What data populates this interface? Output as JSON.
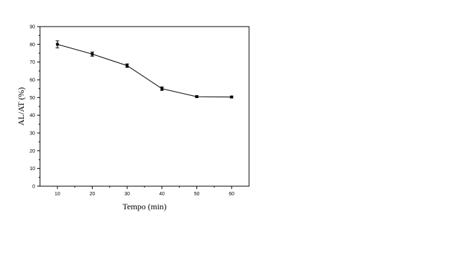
{
  "chart_data": {
    "type": "line",
    "title": "",
    "xlabel": "Tempo (min)",
    "ylabel": "AL/AT (%)",
    "xlim": [
      5,
      65
    ],
    "ylim": [
      0,
      90
    ],
    "xticks": [
      10,
      20,
      30,
      40,
      50,
      60
    ],
    "yticks": [
      0,
      10,
      20,
      30,
      40,
      50,
      60,
      70,
      80,
      90
    ],
    "grid": false,
    "series": [
      {
        "x": [
          10,
          20,
          30,
          40,
          50,
          60
        ],
        "y": [
          80,
          74.5,
          68,
          55,
          50.5,
          50.3
        ],
        "error": [
          2,
          1.2,
          1,
          1,
          0.5,
          0.5
        ],
        "color": "#000000",
        "marker": "square"
      }
    ]
  }
}
